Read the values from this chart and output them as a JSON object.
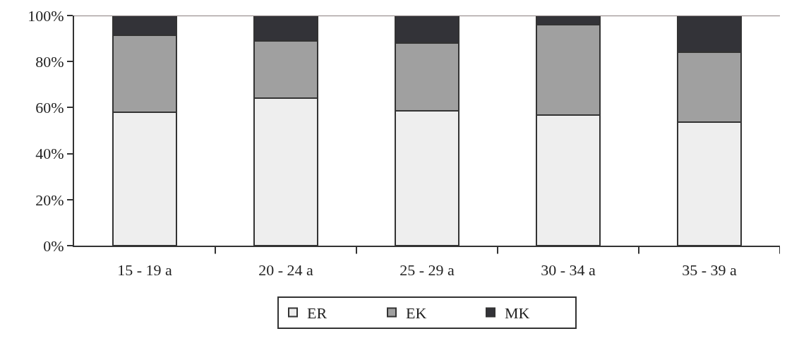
{
  "chart_data": {
    "type": "bar",
    "stacked": true,
    "categories": [
      "15 - 19 a",
      "20 - 24 a",
      "25 - 29 a",
      "30 - 34 a",
      "35 - 39 a"
    ],
    "series": [
      {
        "name": "ER",
        "color": "#eeeeee",
        "values": [
          58.1,
          64.2,
          58.6,
          56.9,
          53.6
        ]
      },
      {
        "name": "EK",
        "color": "#a0a0a0",
        "values": [
          33.2,
          24.8,
          29.3,
          39.2,
          30.6
        ]
      },
      {
        "name": "MK",
        "color": "#333338",
        "values": [
          8.7,
          11.0,
          12.1,
          3.9,
          15.8
        ]
      }
    ],
    "ylim": [
      0,
      100
    ],
    "yticks": [
      {
        "value": 0,
        "label": "0%"
      },
      {
        "value": 20,
        "label": "20%"
      },
      {
        "value": 40,
        "label": "40%"
      },
      {
        "value": 60,
        "label": "60%"
      },
      {
        "value": 80,
        "label": "80%"
      },
      {
        "value": 100,
        "label": "100%"
      }
    ],
    "grid": false,
    "legend": "bottom"
  }
}
